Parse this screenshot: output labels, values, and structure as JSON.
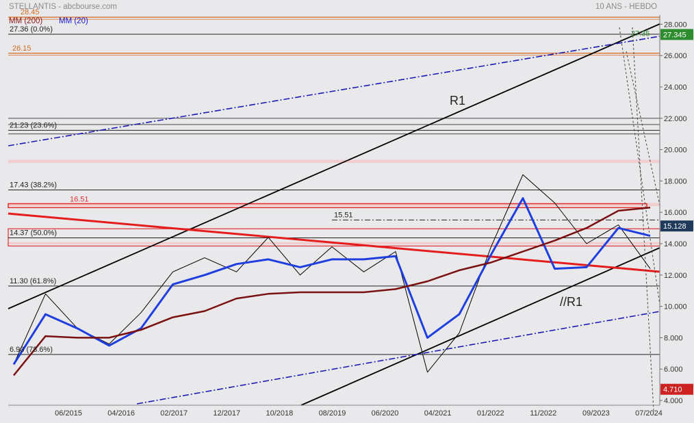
{
  "header": {
    "left": "STELLANTIS - abcbourse.com",
    "right": "10 ANS - HEBDO"
  },
  "legend": {
    "mm200": "MM (200)",
    "mm20": "MM (20)",
    "mm200_color": "#8b1a1a",
    "mm20_color": "#1a1ad6"
  },
  "colors": {
    "background": "#e9e9ec",
    "price": "#000000",
    "mm20": "#1f3ee0",
    "mm200": "#7a1010",
    "trend_black": "#000000",
    "trend_blue": "#1a1ab4",
    "trend_red": "#e41c1c",
    "fib_lines": "#222222",
    "orange_levels": "#d2691e",
    "red_zones": "#e03030",
    "last_price_box": "#1f3a5a",
    "high_box": "#2e8b2e",
    "low_box": "#cc2222"
  },
  "chart_data": {
    "type": "line",
    "title": "STELLANTIS",
    "period": "10 ANS - HEBDO",
    "ylim": [
      4,
      28.5
    ],
    "y_ticks": [
      "4.000",
      "6.000",
      "8.000",
      "10.000",
      "12.000",
      "14.000",
      "16.000",
      "18.000",
      "20.000",
      "22.000",
      "24.000",
      "26.000",
      "28.000"
    ],
    "x_ticks": [
      "06/2015",
      "04/2016",
      "02/2017",
      "12/2017",
      "10/2018",
      "08/2019",
      "06/2020",
      "04/2021",
      "01/2022",
      "11/2022",
      "09/2023",
      "07/2024"
    ],
    "fib_levels": [
      {
        "label": "27.36  (0.0%)",
        "value": 27.36
      },
      {
        "label": "21.23  (23.6%)",
        "value": 21.23
      },
      {
        "label": "17.43  (38.2%)",
        "value": 17.43
      },
      {
        "label": "14.37  (50.0%)",
        "value": 14.37
      },
      {
        "label": "11.30  (61.8%)",
        "value": 11.3
      },
      {
        "label": "6.93  (78.6%)",
        "value": 6.93
      }
    ],
    "orange_levels": [
      {
        "label": "28.45",
        "value": 28.45
      },
      {
        "label": "26.15",
        "value": 26.15
      }
    ],
    "annotations": [
      {
        "text": "R1"
      },
      {
        "text": "//R1"
      },
      {
        "text": "16.51",
        "value": 16.51
      },
      {
        "text": "15.51",
        "value": 15.51
      },
      {
        "text": "27.35",
        "value": 27.35
      }
    ],
    "price_boxes": [
      {
        "label": "27.345",
        "value": 27.345
      },
      {
        "label": "15.128",
        "value": 15.128
      },
      {
        "label": "4.710",
        "value": 4.71
      }
    ],
    "series": [
      {
        "name": "Stellantis",
        "x": [
          0,
          0.5,
          1,
          1.5,
          2,
          2.5,
          3,
          3.5,
          4,
          4.5,
          5,
          5.5,
          6,
          6.5,
          7,
          7.5,
          8,
          8.5,
          9,
          9.5,
          10
        ],
        "values": [
          6.3,
          10.8,
          8.6,
          7.6,
          9.6,
          12.2,
          13.1,
          12.2,
          14.4,
          12.0,
          13.8,
          12.2,
          13.5,
          5.8,
          8.3,
          13.8,
          18.4,
          16.6,
          14.0,
          15.2,
          12.4
        ]
      },
      {
        "name": "MM (20)",
        "x": [
          0,
          0.5,
          1,
          1.5,
          2,
          2.5,
          3,
          3.5,
          4,
          4.5,
          5,
          5.5,
          6,
          6.5,
          7,
          7.5,
          8,
          8.5,
          9,
          9.5,
          10
        ],
        "values": [
          6.3,
          9.5,
          8.6,
          7.5,
          8.6,
          11.4,
          12.0,
          12.7,
          13.0,
          12.5,
          13.0,
          13.0,
          13.2,
          8.0,
          9.5,
          13.3,
          16.9,
          12.4,
          12.5,
          15.0,
          14.5
        ]
      },
      {
        "name": "MM (200)",
        "x": [
          0,
          0.5,
          1,
          1.5,
          2,
          2.5,
          3,
          3.5,
          4,
          4.5,
          5,
          5.5,
          6,
          6.5,
          7,
          7.5,
          8,
          8.5,
          9,
          9.5,
          10
        ],
        "values": [
          5.6,
          8.1,
          8.0,
          8.0,
          8.5,
          9.3,
          9.7,
          10.5,
          10.8,
          10.9,
          10.9,
          10.9,
          11.1,
          11.6,
          12.3,
          12.8,
          13.5,
          14.2,
          15.0,
          16.1,
          16.3
        ]
      }
    ]
  }
}
